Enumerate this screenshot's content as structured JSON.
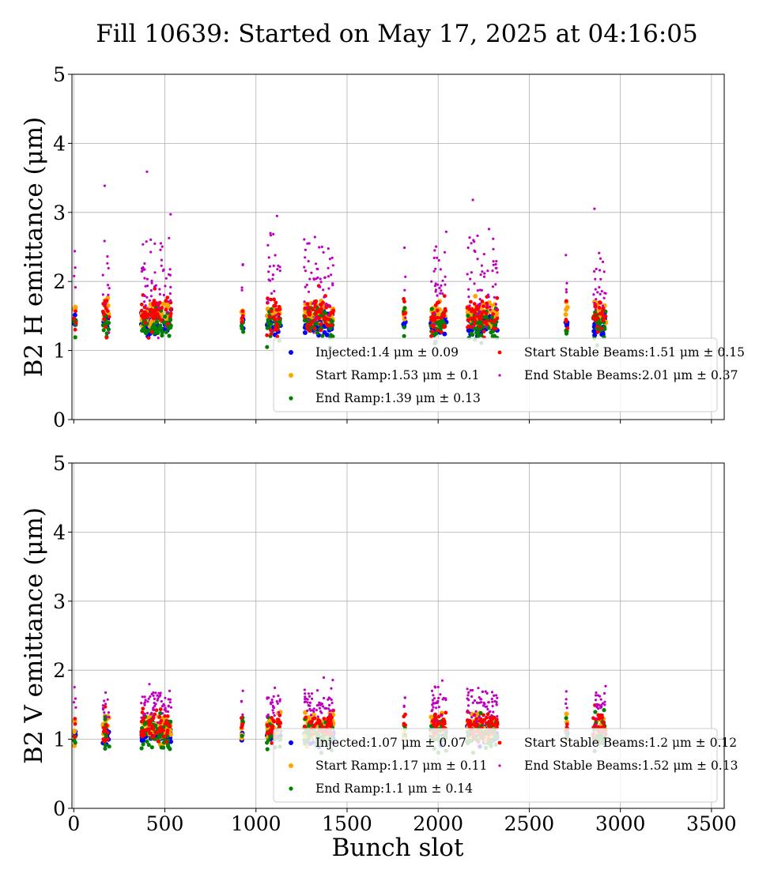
{
  "figure": {
    "title": "Fill 10639: Started on May 17, 2025 at 04:16:05",
    "xlabel": "Bunch slot"
  },
  "chart_data": [
    {
      "type": "scatter",
      "ylabel": "B2 H emittance (μm)",
      "xlim": [
        -10,
        3570
      ],
      "ylim": [
        0,
        5
      ],
      "xticks": [
        "0",
        "500",
        "1000",
        "1500",
        "2000",
        "2500",
        "3000",
        "3500"
      ],
      "yticks": [
        "0",
        "1",
        "2",
        "3",
        "4",
        "5"
      ],
      "grid": true,
      "legend_position": "lower-right",
      "bunch_trains": [
        [
          0,
          12
        ],
        [
          160,
          195
        ],
        [
          370,
          535
        ],
        [
          920,
          930
        ],
        [
          1060,
          1135
        ],
        [
          1265,
          1425
        ],
        [
          1810,
          1820
        ],
        [
          1960,
          2045
        ],
        [
          2160,
          2325
        ],
        [
          2700,
          2710
        ],
        [
          2850,
          2920
        ]
      ],
      "series": [
        {
          "name": "Injected",
          "legend": "Injected:1.4 μm ± 0.09",
          "color": "#0000ff",
          "mean": 1.4,
          "std": 0.09
        },
        {
          "name": "Start Ramp",
          "legend": "Start Ramp:1.53 μm ± 0.1",
          "color": "#ffa500",
          "mean": 1.53,
          "std": 0.1
        },
        {
          "name": "End Ramp",
          "legend": "End Ramp:1.39 μm ± 0.13",
          "color": "#008000",
          "mean": 1.39,
          "std": 0.13
        },
        {
          "name": "Start Stable Beams",
          "legend": "Start Stable Beams:1.51 μm ± 0.15",
          "color": "#ff0000",
          "mean": 1.51,
          "std": 0.15
        },
        {
          "name": "End Stable Beams",
          "legend": "End Stable Beams:2.01 μm ± 0.37",
          "color": "#bf00bf",
          "mean": 2.01,
          "std": 0.37
        }
      ]
    },
    {
      "type": "scatter",
      "ylabel": "B2 V emittance (μm)",
      "xlim": [
        -10,
        3570
      ],
      "ylim": [
        0,
        5
      ],
      "xticks": [
        "0",
        "500",
        "1000",
        "1500",
        "2000",
        "2500",
        "3000",
        "3500"
      ],
      "yticks": [
        "0",
        "1",
        "2",
        "3",
        "4",
        "5"
      ],
      "grid": true,
      "legend_position": "lower-right",
      "bunch_trains": [
        [
          0,
          12
        ],
        [
          160,
          195
        ],
        [
          370,
          535
        ],
        [
          920,
          930
        ],
        [
          1060,
          1135
        ],
        [
          1265,
          1425
        ],
        [
          1810,
          1820
        ],
        [
          1960,
          2045
        ],
        [
          2160,
          2325
        ],
        [
          2700,
          2710
        ],
        [
          2850,
          2920
        ]
      ],
      "series": [
        {
          "name": "Injected",
          "legend": "Injected:1.07 μm ± 0.07",
          "color": "#0000ff",
          "mean": 1.07,
          "std": 0.07
        },
        {
          "name": "Start Ramp",
          "legend": "Start Ramp:1.17 μm ± 0.11",
          "color": "#ffa500",
          "mean": 1.17,
          "std": 0.11
        },
        {
          "name": "End Ramp",
          "legend": "End Ramp:1.1 μm ± 0.14",
          "color": "#008000",
          "mean": 1.1,
          "std": 0.14
        },
        {
          "name": "Start Stable Beams",
          "legend": "Start Stable Beams:1.2 μm ± 0.12",
          "color": "#ff0000",
          "mean": 1.2,
          "std": 0.12
        },
        {
          "name": "End Stable Beams",
          "legend": "End Stable Beams:1.52 μm ± 0.13",
          "color": "#bf00bf",
          "mean": 1.52,
          "std": 0.13
        }
      ]
    }
  ]
}
